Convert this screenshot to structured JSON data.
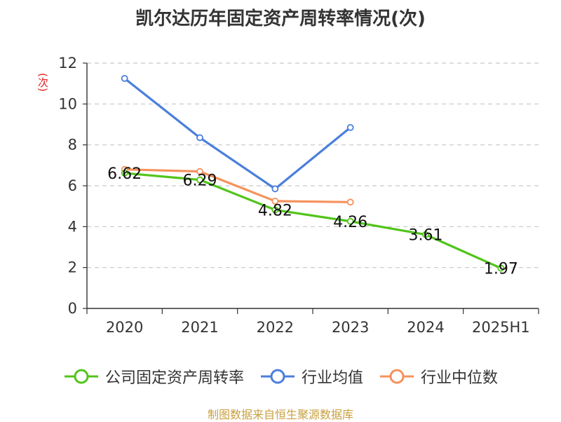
{
  "chart_data": {
    "type": "line",
    "title": "凯尔达历年固定资产周转率情况(次)",
    "ylabel": "(次)",
    "categories": [
      "2020",
      "2021",
      "2022",
      "2023",
      "2024",
      "2025H1"
    ],
    "yticks": [
      "0",
      "2",
      "4",
      "6",
      "8",
      "10",
      "12"
    ],
    "ylim": [
      0,
      12
    ],
    "grid": true,
    "legend_position": "bottom",
    "series": [
      {
        "name": "公司固定资产周转率",
        "color": "#52c41a",
        "values": [
          6.62,
          6.29,
          4.82,
          4.26,
          3.61,
          1.97
        ],
        "labels": [
          "6.62",
          "6.29",
          "4.82",
          "4.26",
          "3.61",
          "1.97"
        ]
      },
      {
        "name": "行业均值",
        "color": "#4a7fdc",
        "values": [
          11.25,
          8.35,
          5.85,
          8.85,
          null,
          null
        ]
      },
      {
        "name": "行业中位数",
        "color": "#f5925c",
        "values": [
          6.8,
          6.7,
          5.25,
          5.2,
          null,
          null
        ]
      }
    ]
  },
  "source": "制图数据来自恒生聚源数据库"
}
